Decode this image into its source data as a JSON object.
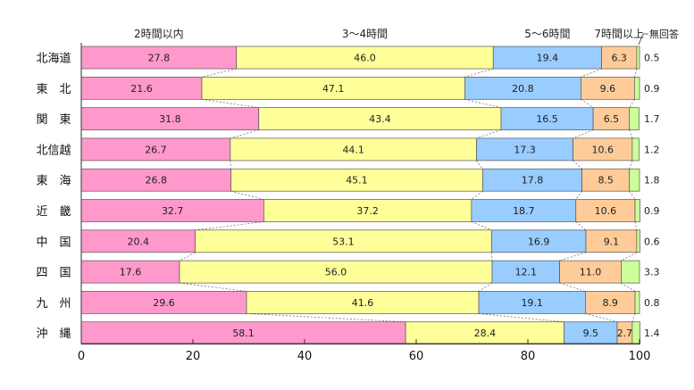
{
  "chart_data": {
    "type": "bar",
    "orientation": "horizontal-stacked-100",
    "categories": [
      "北海道",
      "東　北",
      "関　東",
      "北信越",
      "東　海",
      "近　畿",
      "中　国",
      "四　国",
      "九　州",
      "沖　縄"
    ],
    "series": [
      {
        "name": "2時間以内",
        "color": "#ff99cc",
        "values": [
          27.8,
          21.6,
          31.8,
          26.7,
          26.8,
          32.7,
          20.4,
          17.6,
          29.6,
          58.1
        ]
      },
      {
        "name": "3～4時間",
        "color": "#ffff99",
        "values": [
          46.0,
          47.1,
          43.4,
          44.1,
          45.1,
          37.2,
          53.1,
          56.0,
          41.6,
          28.4
        ]
      },
      {
        "name": "5～6時間",
        "color": "#99ccff",
        "values": [
          19.4,
          20.8,
          16.5,
          17.3,
          17.8,
          18.7,
          16.9,
          12.1,
          19.1,
          9.5
        ]
      },
      {
        "name": "7時間以上",
        "color": "#ffcc99",
        "values": [
          6.3,
          9.6,
          6.5,
          10.6,
          8.5,
          10.6,
          9.1,
          11.0,
          8.9,
          2.7
        ]
      },
      {
        "name": "無回答",
        "color": "#ccff99",
        "values": [
          0.5,
          0.9,
          1.7,
          1.2,
          1.8,
          0.9,
          0.6,
          3.3,
          0.8,
          1.4
        ]
      }
    ],
    "x_ticks": [
      0,
      20,
      40,
      60,
      80,
      100
    ],
    "xlim": [
      0,
      100
    ],
    "title": "",
    "xlabel": "",
    "ylabel": "",
    "legend_position": "top"
  }
}
